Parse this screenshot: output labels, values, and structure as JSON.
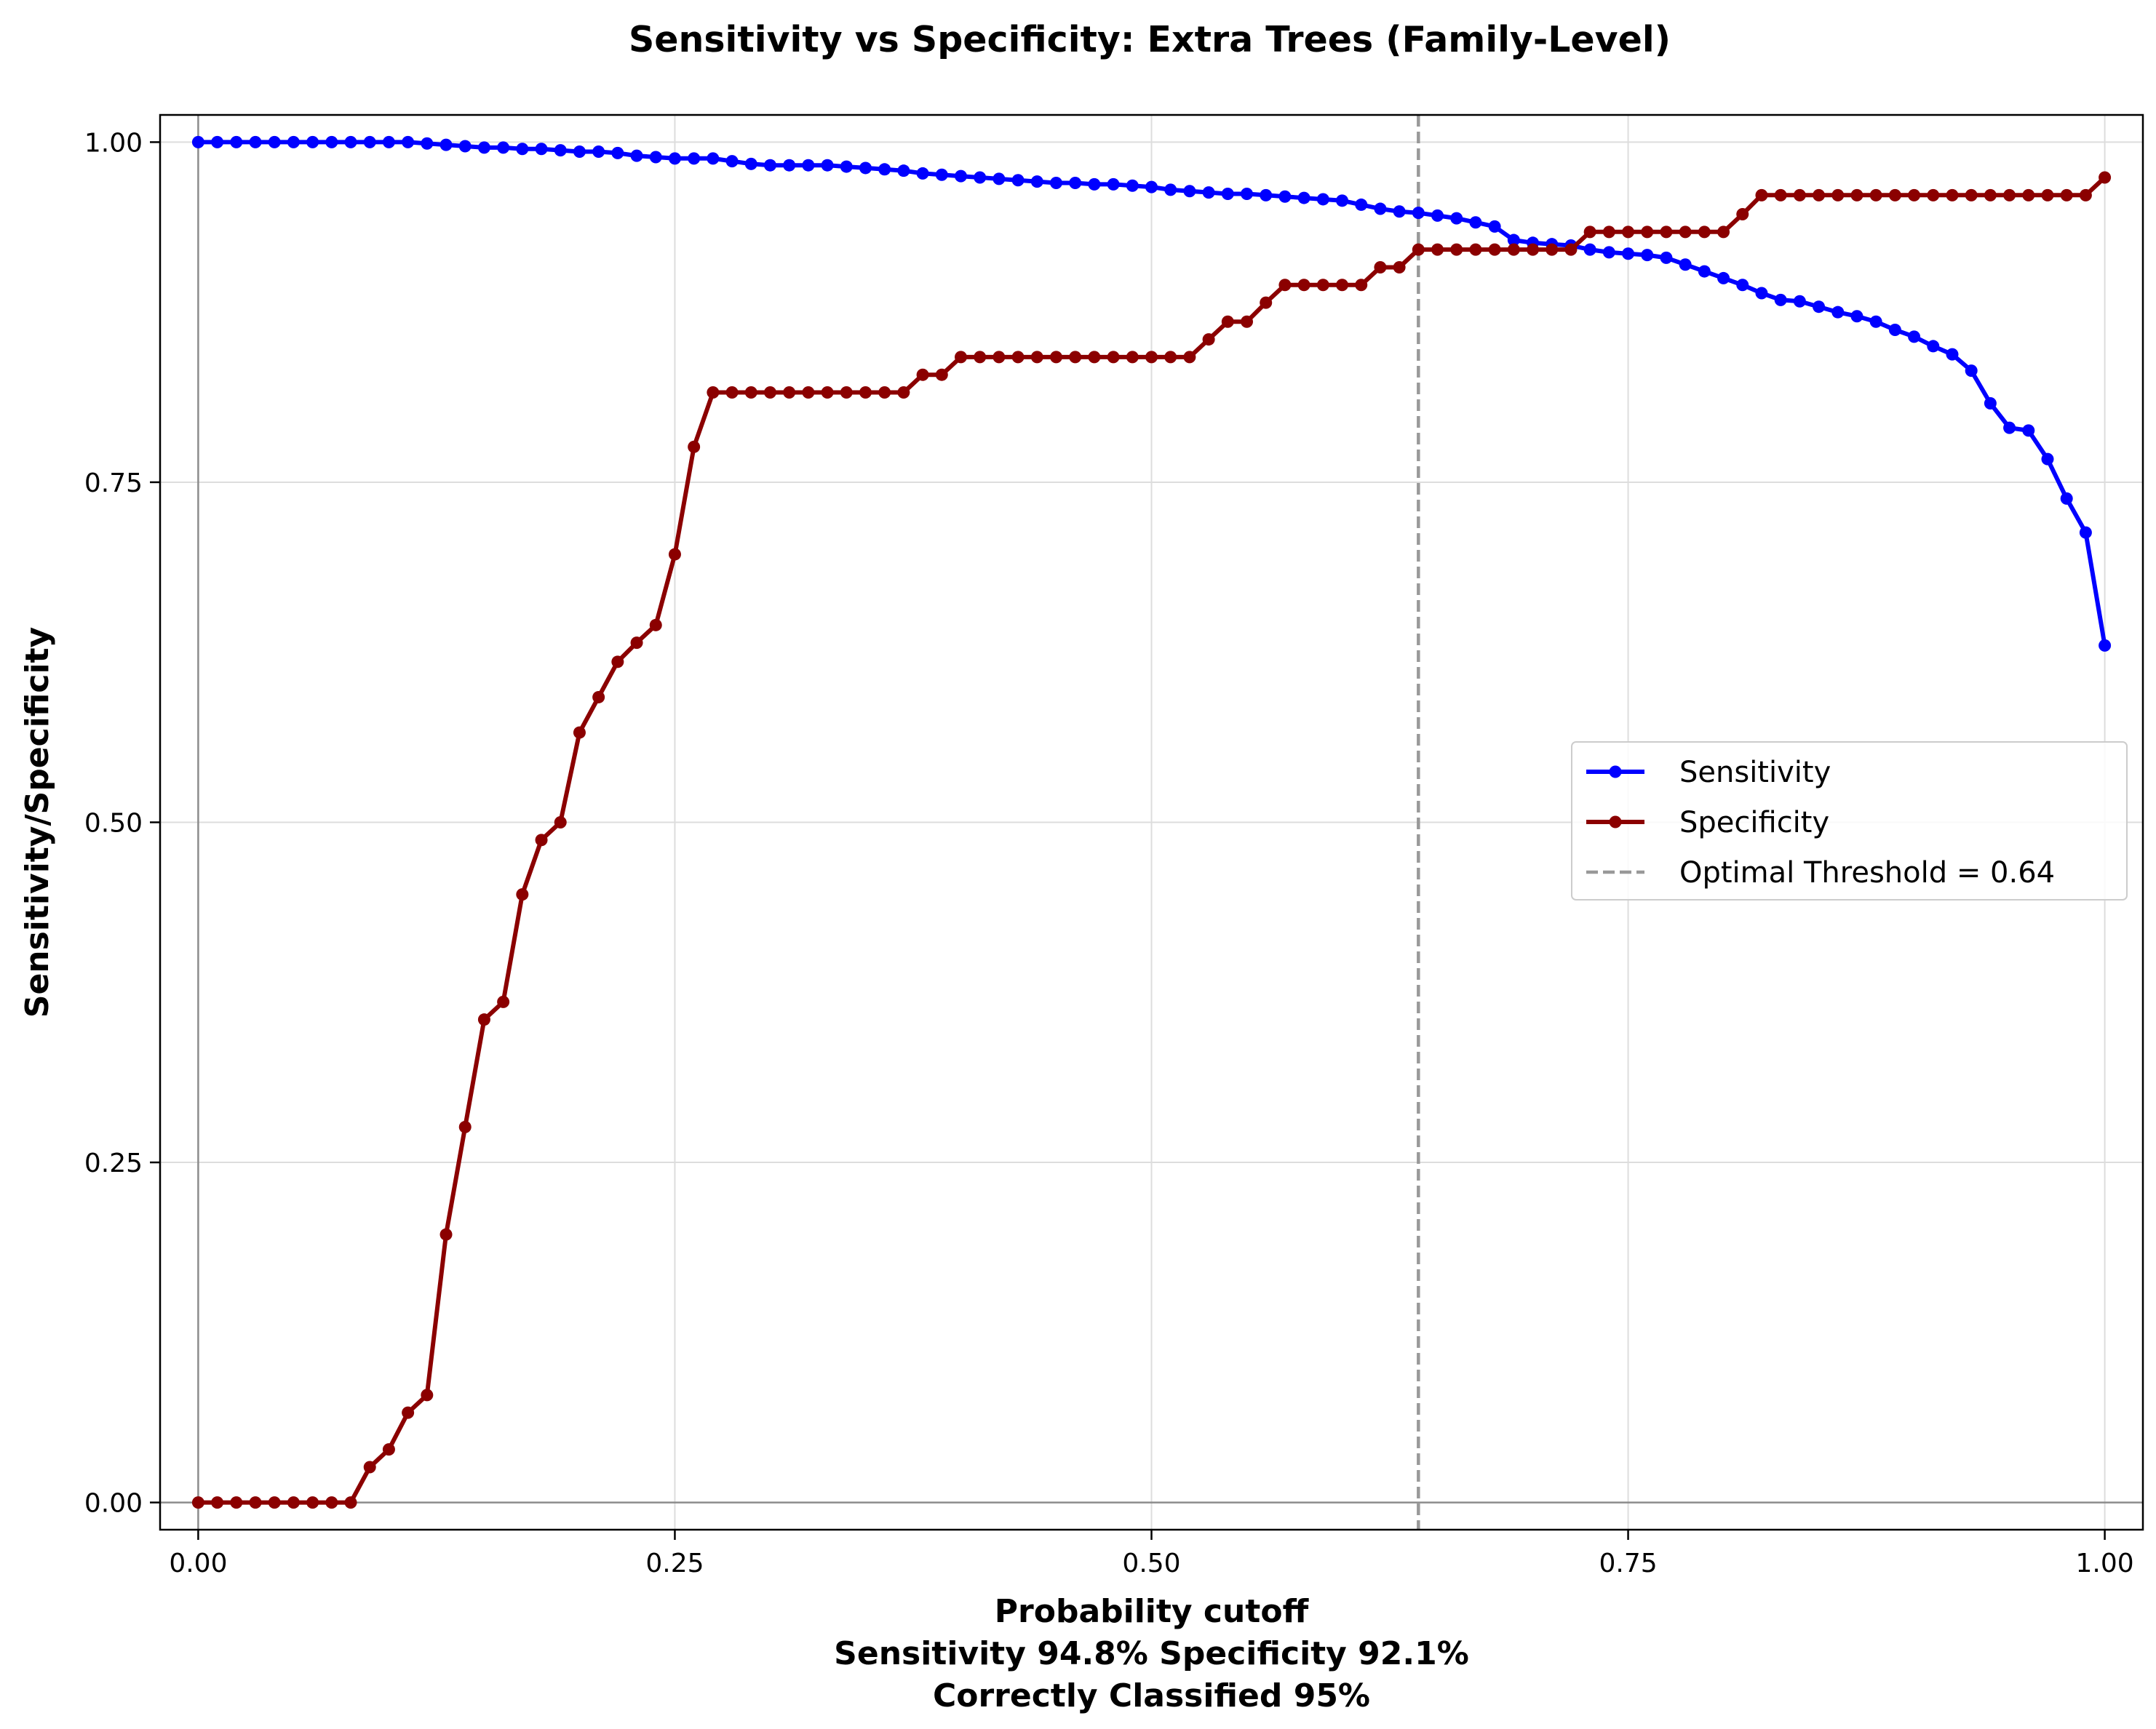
{
  "chart_data": {
    "type": "line",
    "title": "Sensitivity vs Specificity: Extra Trees (Family-Level)",
    "xlabel": "Probability cutoff",
    "xlabel_lines": [
      "Probability cutoff",
      "Sensitivity 94.8% Specificity 92.1%",
      "Correctly Classified 95%"
    ],
    "ylabel": "Sensitivity/Specificity",
    "xlim": [
      -0.02,
      1.02
    ],
    "ylim": [
      -0.02,
      1.02
    ],
    "xticks": [
      0,
      0.25,
      0.5,
      0.75,
      1.0
    ],
    "xtick_labels": [
      "0.00",
      "0.25",
      "0.50",
      "0.75",
      "1.00"
    ],
    "yticks": [
      0,
      0.25,
      0.5,
      0.75,
      1.0
    ],
    "ytick_labels": [
      "0.00",
      "0.25",
      "0.50",
      "0.75",
      "1.00"
    ],
    "grid": true,
    "legend_position": "center-right",
    "threshold": {
      "x": 0.64,
      "label": "Optimal Threshold = 0.64",
      "color": "#999999"
    },
    "series": [
      {
        "name": "Sensitivity",
        "color": "#0000ff",
        "x": [
          0,
          0.01,
          0.02,
          0.03,
          0.04,
          0.05,
          0.06,
          0.07,
          0.08,
          0.09,
          0.1,
          0.11,
          0.12,
          0.13,
          0.14,
          0.15,
          0.16,
          0.17,
          0.18,
          0.19,
          0.2,
          0.21,
          0.22,
          0.23,
          0.24,
          0.25,
          0.26,
          0.27,
          0.28,
          0.29,
          0.3,
          0.31,
          0.32,
          0.33,
          0.34,
          0.35,
          0.36,
          0.37,
          0.38,
          0.39,
          0.4,
          0.41,
          0.42,
          0.43,
          0.44,
          0.45,
          0.46,
          0.47,
          0.48,
          0.49,
          0.5,
          0.51,
          0.52,
          0.53,
          0.54,
          0.55,
          0.56,
          0.57,
          0.58,
          0.59,
          0.6,
          0.61,
          0.62,
          0.63,
          0.64,
          0.65,
          0.66,
          0.67,
          0.68,
          0.69,
          0.7,
          0.71,
          0.72,
          0.73,
          0.74,
          0.75,
          0.76,
          0.77,
          0.78,
          0.79,
          0.8,
          0.81,
          0.82,
          0.83,
          0.84,
          0.85,
          0.86,
          0.87,
          0.88,
          0.89,
          0.9,
          0.91,
          0.92,
          0.93,
          0.94,
          0.95,
          0.96,
          0.97,
          0.98,
          0.99,
          1.0
        ],
        "values": [
          1.0,
          1.0,
          1.0,
          1.0,
          1.0,
          1.0,
          1.0,
          1.0,
          1.0,
          1.0,
          1.0,
          1.0,
          0.999,
          0.998,
          0.997,
          0.996,
          0.996,
          0.995,
          0.995,
          0.994,
          0.993,
          0.993,
          0.992,
          0.99,
          0.989,
          0.988,
          0.988,
          0.988,
          0.986,
          0.984,
          0.983,
          0.983,
          0.983,
          0.983,
          0.982,
          0.981,
          0.98,
          0.979,
          0.977,
          0.976,
          0.975,
          0.974,
          0.973,
          0.972,
          0.971,
          0.97,
          0.97,
          0.969,
          0.969,
          0.968,
          0.967,
          0.965,
          0.964,
          0.963,
          0.962,
          0.962,
          0.961,
          0.96,
          0.959,
          0.958,
          0.957,
          0.954,
          0.951,
          0.949,
          0.948,
          0.946,
          0.944,
          0.941,
          0.938,
          0.928,
          0.926,
          0.925,
          0.924,
          0.921,
          0.919,
          0.918,
          0.917,
          0.915,
          0.91,
          0.905,
          0.9,
          0.895,
          0.889,
          0.884,
          0.883,
          0.879,
          0.875,
          0.872,
          0.868,
          0.862,
          0.857,
          0.85,
          0.844,
          0.832,
          0.808,
          0.79,
          0.788,
          0.767,
          0.738,
          0.713,
          0.63
        ]
      },
      {
        "name": "Specificity",
        "color": "#8b0000",
        "x": [
          0,
          0.01,
          0.02,
          0.03,
          0.04,
          0.05,
          0.06,
          0.07,
          0.08,
          0.09,
          0.1,
          0.11,
          0.12,
          0.13,
          0.14,
          0.15,
          0.16,
          0.17,
          0.18,
          0.19,
          0.2,
          0.21,
          0.22,
          0.23,
          0.24,
          0.25,
          0.26,
          0.27,
          0.28,
          0.29,
          0.3,
          0.31,
          0.32,
          0.33,
          0.34,
          0.35,
          0.36,
          0.37,
          0.38,
          0.39,
          0.4,
          0.41,
          0.42,
          0.43,
          0.44,
          0.45,
          0.46,
          0.47,
          0.48,
          0.49,
          0.5,
          0.51,
          0.52,
          0.53,
          0.54,
          0.55,
          0.56,
          0.57,
          0.58,
          0.59,
          0.6,
          0.61,
          0.62,
          0.63,
          0.64,
          0.65,
          0.66,
          0.67,
          0.68,
          0.69,
          0.7,
          0.71,
          0.72,
          0.73,
          0.74,
          0.75,
          0.76,
          0.77,
          0.78,
          0.79,
          0.8,
          0.81,
          0.82,
          0.83,
          0.84,
          0.85,
          0.86,
          0.87,
          0.88,
          0.89,
          0.9,
          0.91,
          0.92,
          0.93,
          0.94,
          0.95,
          0.96,
          0.97,
          0.98,
          0.99,
          1.0
        ],
        "values": [
          0,
          0,
          0,
          0,
          0,
          0,
          0,
          0,
          0,
          0.026,
          0.039,
          0.066,
          0.079,
          0.197,
          0.276,
          0.355,
          0.368,
          0.447,
          0.487,
          0.5,
          0.566,
          0.592,
          0.618,
          0.632,
          0.645,
          0.697,
          0.776,
          0.816,
          0.816,
          0.816,
          0.816,
          0.816,
          0.816,
          0.816,
          0.816,
          0.816,
          0.816,
          0.816,
          0.829,
          0.829,
          0.842,
          0.842,
          0.842,
          0.842,
          0.842,
          0.842,
          0.842,
          0.842,
          0.842,
          0.842,
          0.842,
          0.842,
          0.842,
          0.855,
          0.868,
          0.868,
          0.882,
          0.895,
          0.895,
          0.895,
          0.895,
          0.895,
          0.908,
          0.908,
          0.921,
          0.921,
          0.921,
          0.921,
          0.921,
          0.921,
          0.921,
          0.921,
          0.921,
          0.934,
          0.934,
          0.934,
          0.934,
          0.934,
          0.934,
          0.934,
          0.934,
          0.947,
          0.961,
          0.961,
          0.961,
          0.961,
          0.961,
          0.961,
          0.961,
          0.961,
          0.961,
          0.961,
          0.961,
          0.961,
          0.961,
          0.961,
          0.961,
          0.961,
          0.961,
          0.961,
          0.974
        ]
      }
    ]
  }
}
